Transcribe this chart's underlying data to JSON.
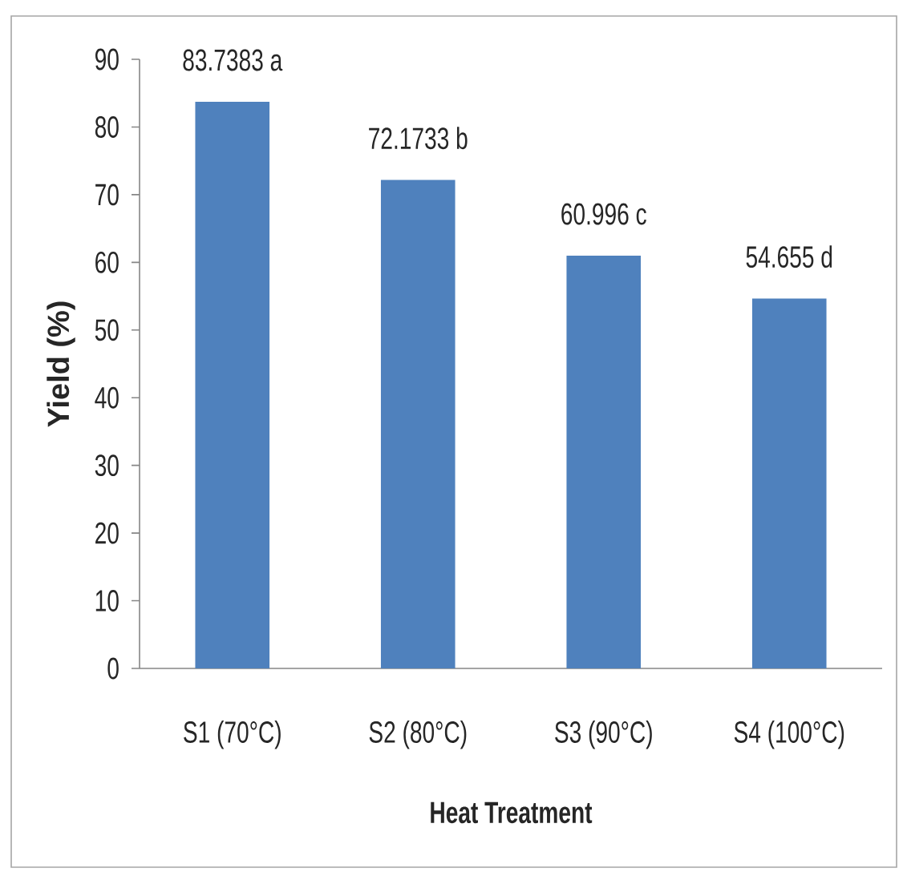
{
  "chart_data": {
    "type": "bar",
    "xlabel": "Heat Treatment",
    "ylabel": "Yield (%)",
    "categories": [
      "S1 (70°C)",
      "S2 (80°C)",
      "S3 (90°C)",
      "S4 (100°C)"
    ],
    "values": [
      83.7383,
      72.1733,
      60.996,
      54.655
    ],
    "value_labels": [
      "83.7383 a",
      "72.1733 b",
      "60.996 c",
      "54.655 d"
    ],
    "color": "#4f81bd",
    "ylim": [
      0,
      90
    ],
    "yticks": [
      0,
      10,
      20,
      30,
      40,
      50,
      60,
      70,
      80,
      90
    ]
  }
}
